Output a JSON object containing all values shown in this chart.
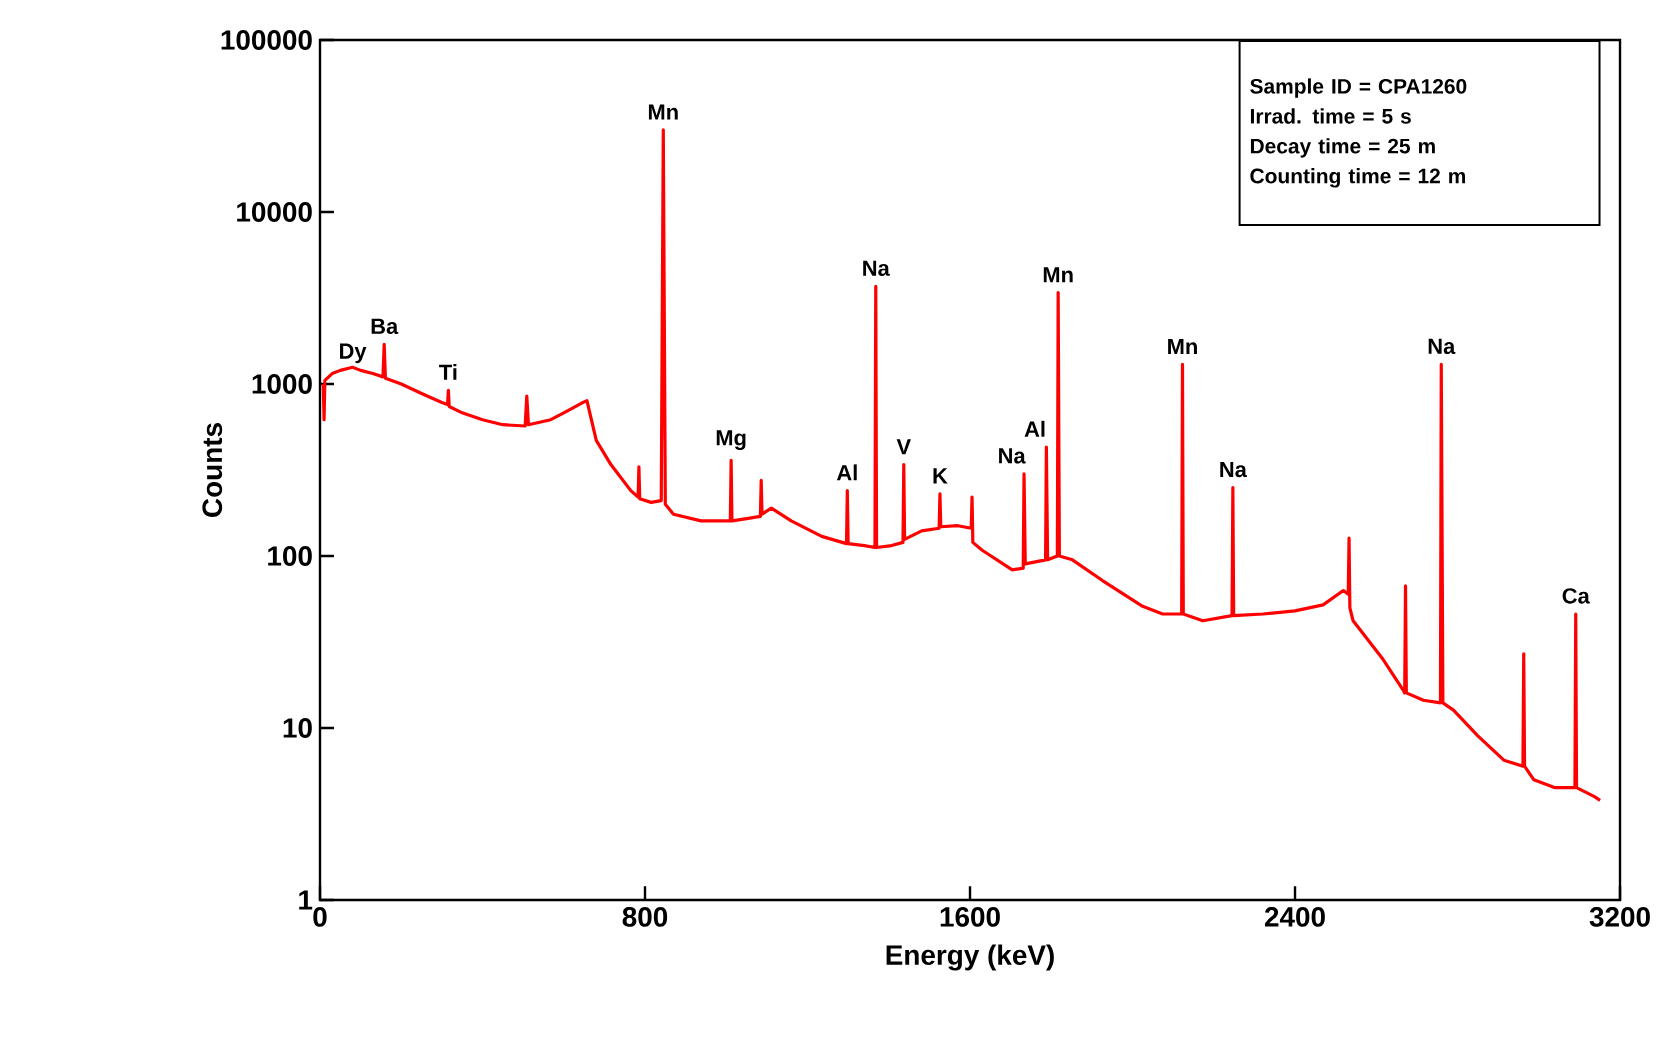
{
  "chart_data": {
    "type": "line",
    "xlabel": "Energy (keV)",
    "ylabel": "Counts",
    "xlim": [
      0,
      3200
    ],
    "xticks": [
      0,
      800,
      1600,
      2400,
      3200
    ],
    "ylim": [
      1,
      100000
    ],
    "yticks": [
      1,
      10,
      100,
      1000,
      10000,
      100000
    ],
    "log": "y",
    "grid": false,
    "marker": "none",
    "line_style": "solid",
    "series": [
      {
        "color": "#ff0000",
        "x": [
          8,
          10,
          12,
          30,
          50,
          80,
          100,
          130,
          155,
          158,
          161,
          200,
          250,
          300,
          314,
          316,
          318,
          350,
          400,
          450,
          505,
          509,
          513,
          568,
          600,
          642,
          657,
          680,
          716,
          765,
          783,
          785,
          787,
          815,
          840,
          845,
          850,
          870,
          938,
          1010,
          1012,
          1014,
          1050,
          1084,
          1086,
          1088,
          1111,
          1160,
          1235,
          1296,
          1298,
          1300,
          1340,
          1366,
          1368,
          1370,
          1407,
          1435,
          1437,
          1439,
          1481,
          1524,
          1526,
          1528,
          1570,
          1603,
          1605,
          1607,
          1630,
          1704,
          1731,
          1733,
          1736,
          1786,
          1788,
          1791,
          1815,
          1817,
          1820,
          1852,
          1926,
          2025,
          2074,
          2121,
          2123,
          2125,
          2173,
          2245,
          2247,
          2249,
          2321,
          2400,
          2469,
          2519,
          2531,
          2533,
          2535,
          2543,
          2617,
          2667,
          2670,
          2672,
          2674,
          2716,
          2758,
          2760,
          2764,
          2790,
          2850,
          2914,
          2961,
          2963,
          2965,
          2988,
          3040,
          3089,
          3091,
          3093,
          3136,
          3151
        ],
        "values": [
          1000,
          620,
          1050,
          1150,
          1200,
          1250,
          1200,
          1150,
          1100,
          1700,
          1080,
          1000,
          880,
          780,
          760,
          920,
          740,
          680,
          620,
          580,
          570,
          850,
          580,
          620,
          680,
          770,
          800,
          470,
          340,
          240,
          220,
          330,
          215,
          205,
          210,
          30000,
          200,
          175,
          160,
          160,
          360,
          160,
          165,
          170,
          275,
          175,
          190,
          160,
          130,
          118,
          240,
          118,
          115,
          112,
          3700,
          112,
          115,
          120,
          340,
          125,
          140,
          145,
          230,
          148,
          150,
          145,
          220,
          120,
          108,
          83,
          85,
          300,
          90,
          95,
          430,
          95,
          100,
          3400,
          100,
          95,
          72,
          51,
          46,
          46,
          1300,
          46,
          42,
          45,
          250,
          45,
          46,
          48,
          52,
          63,
          60,
          127,
          50,
          42,
          25,
          16.5,
          16,
          67,
          16,
          14.5,
          14,
          1300,
          14,
          12.7,
          9,
          6.5,
          6,
          27,
          6,
          5,
          4.5,
          4.5,
          46,
          4.5,
          4,
          3.8
        ]
      }
    ],
    "annotations": [
      {
        "text": "Dy",
        "x": 30,
        "y": 1150
      },
      {
        "text": "Ba",
        "x": 158,
        "y": 1700
      },
      {
        "text": "Ti",
        "x": 316,
        "y": 920
      },
      {
        "text": "Mn",
        "x": 845,
        "y": 30000
      },
      {
        "text": "Mg",
        "x": 1012,
        "y": 360
      },
      {
        "text": "Al",
        "x": 1298,
        "y": 240
      },
      {
        "text": "Na",
        "x": 1368,
        "y": 3700
      },
      {
        "text": "V",
        "x": 1437,
        "y": 340
      },
      {
        "text": "K",
        "x": 1526,
        "y": 230
      },
      {
        "text": "Na",
        "x": 1733,
        "y": 300
      },
      {
        "text": "Al",
        "x": 1788,
        "y": 430
      },
      {
        "text": "Mn",
        "x": 1817,
        "y": 3400
      },
      {
        "text": "Mn",
        "x": 2123,
        "y": 1300
      },
      {
        "text": "Na",
        "x": 2247,
        "y": 250
      },
      {
        "text": "Na",
        "x": 2760,
        "y": 1300
      },
      {
        "text": "Ca",
        "x": 3091,
        "y": 46
      },
      "Sample ID = CPA1260",
      "Irrad. time = 5 s",
      "Decay time = 25 m",
      "Counting time = 12 m"
    ]
  }
}
